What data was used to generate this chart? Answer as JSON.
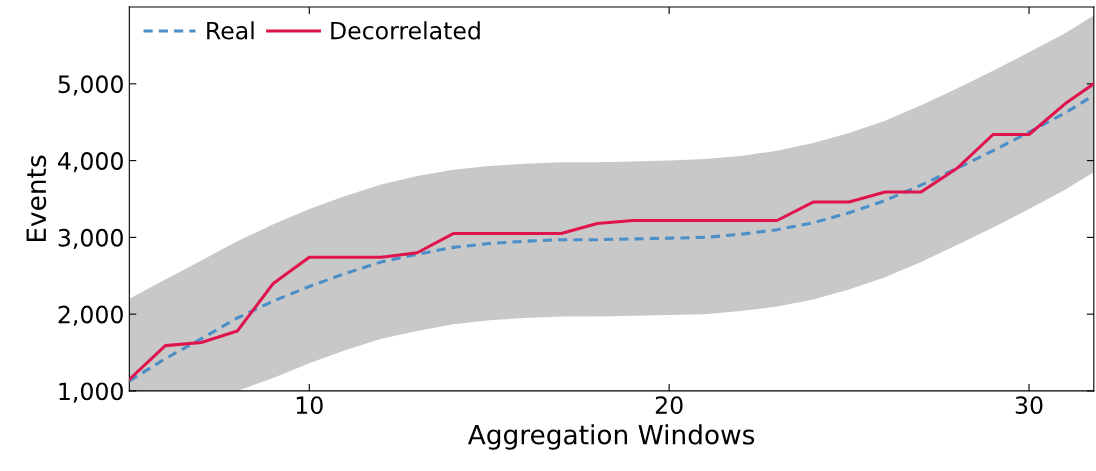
{
  "chart_data": {
    "type": "line",
    "xlabel": "Aggregation Windows",
    "ylabel": "Events",
    "xlim": [
      5,
      31.8
    ],
    "xticks": [
      10,
      20,
      30
    ],
    "ylim": [
      1000,
      6000
    ],
    "yticks": [
      {
        "value": 1000,
        "label": "1,000"
      },
      {
        "value": 2000,
        "label": "2,000"
      },
      {
        "value": 3000,
        "label": "3,000"
      },
      {
        "value": 4000,
        "label": "4,000"
      },
      {
        "value": 5000,
        "label": "5,000"
      }
    ],
    "grid": false,
    "legend": "top left",
    "series": [
      {
        "name": "Real",
        "color": "#4a8fc7",
        "line_style": "dashed",
        "x": [
          5,
          6,
          7,
          8,
          9,
          10,
          11,
          12,
          13,
          14,
          15,
          16,
          17,
          18,
          19,
          20,
          21,
          22,
          23,
          24,
          25,
          26,
          27,
          28,
          29,
          30,
          31,
          31.8
        ],
        "values": [
          1130,
          1420,
          1680,
          1950,
          2170,
          2360,
          2530,
          2680,
          2780,
          2870,
          2920,
          2950,
          2970,
          2970,
          2980,
          2990,
          3000,
          3040,
          3100,
          3190,
          3320,
          3480,
          3680,
          3900,
          4130,
          4370,
          4620,
          4850
        ],
        "lower": [
          1000,
          1000,
          1000,
          1000,
          1170,
          1360,
          1530,
          1680,
          1780,
          1870,
          1920,
          1950,
          1970,
          1970,
          1980,
          1990,
          2000,
          2040,
          2100,
          2190,
          2320,
          2480,
          2680,
          2900,
          3130,
          3370,
          3620,
          3850
        ],
        "upper": [
          2200,
          2450,
          2700,
          2950,
          3170,
          3370,
          3540,
          3690,
          3800,
          3880,
          3930,
          3960,
          3980,
          3980,
          3990,
          4000,
          4020,
          4060,
          4130,
          4230,
          4360,
          4520,
          4720,
          4940,
          5170,
          5410,
          5660,
          5890
        ]
      },
      {
        "name": "Decorrelated",
        "color": "#e0144c",
        "line_style": "solid",
        "x": [
          5,
          6,
          7,
          8,
          9,
          10,
          11,
          12,
          13,
          14,
          15,
          16,
          17,
          18,
          19,
          20,
          21,
          22,
          23,
          24,
          25,
          26,
          27,
          28,
          29,
          30,
          31,
          31.8
        ],
        "values": [
          1150,
          1590,
          1630,
          1780,
          2400,
          2740,
          2740,
          2740,
          2800,
          3050,
          3050,
          3050,
          3050,
          3180,
          3220,
          3220,
          3220,
          3220,
          3220,
          3460,
          3460,
          3590,
          3590,
          3900,
          4340,
          4340,
          4740,
          5000
        ]
      }
    ]
  }
}
